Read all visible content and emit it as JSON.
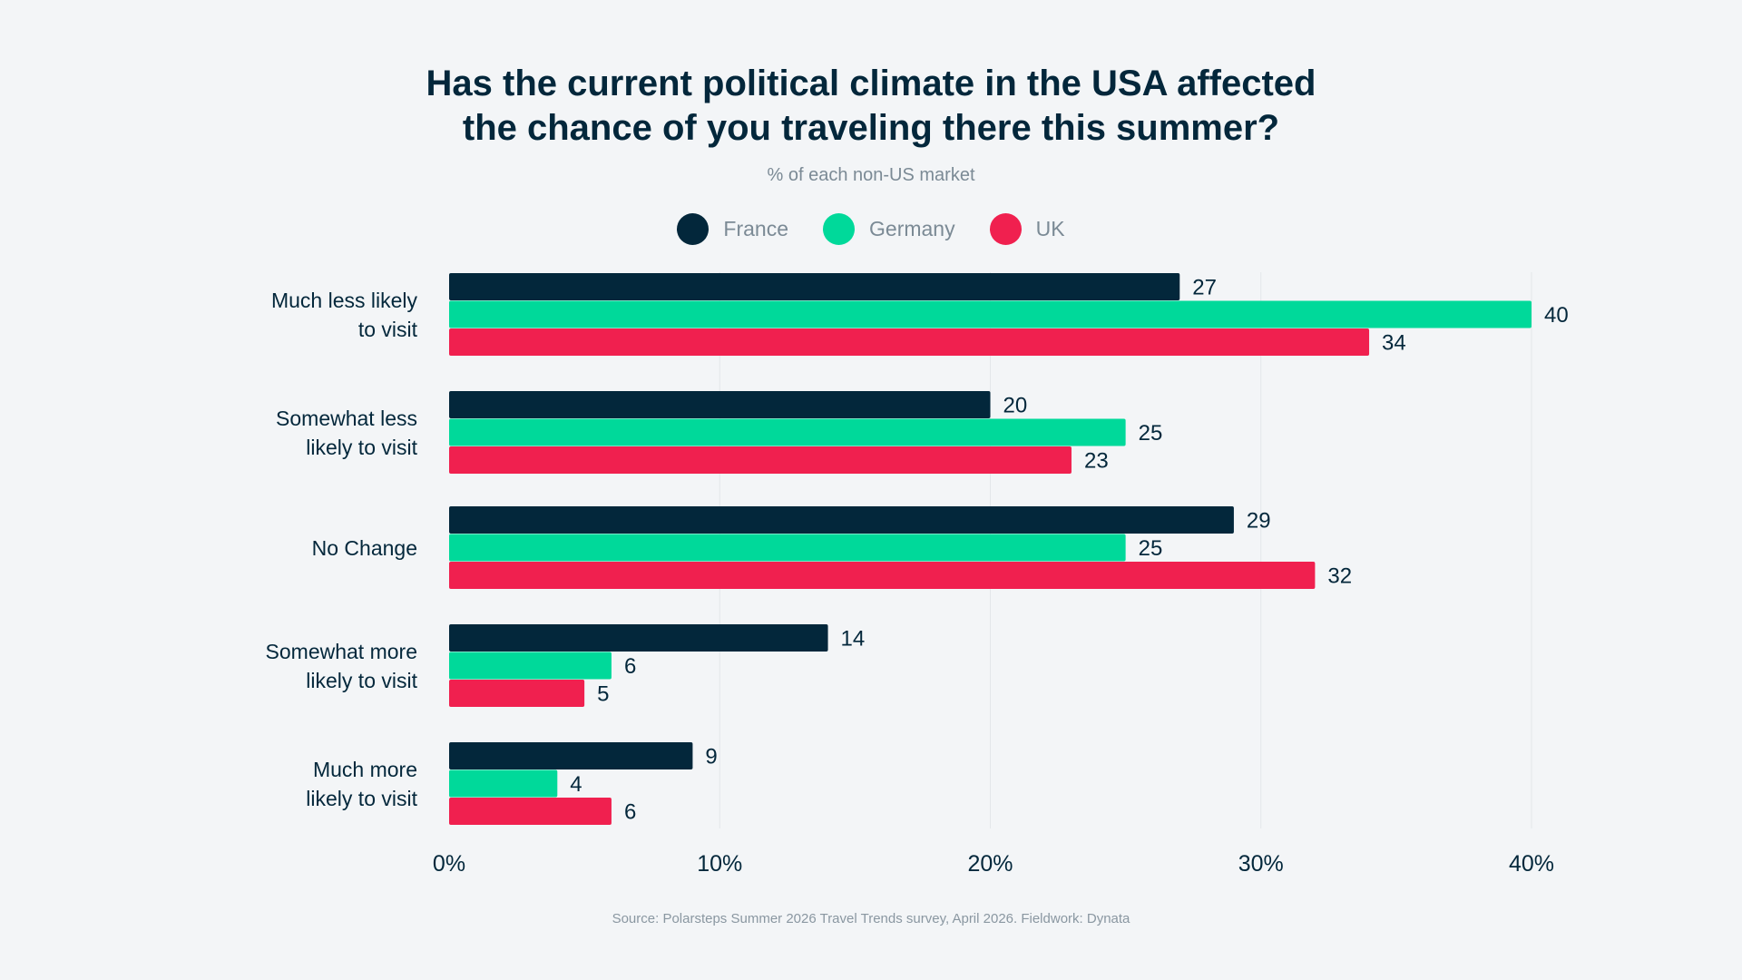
{
  "chart_data": {
    "type": "bar",
    "orientation": "horizontal",
    "title": [
      "Has the current political climate in the USA affected",
      "the chance of you traveling there this summer?"
    ],
    "subtitle": "% of each non-US market",
    "categories": [
      [
        "Much less likely",
        "to visit"
      ],
      [
        "Somewhat less",
        "likely to visit"
      ],
      [
        "No Change"
      ],
      [
        "Somewhat more",
        "likely to visit"
      ],
      [
        "Much more",
        "likely to visit"
      ]
    ],
    "series": [
      {
        "name": "France",
        "color": "#03273b",
        "values": [
          27,
          20,
          29,
          14,
          9
        ]
      },
      {
        "name": "Germany",
        "color": "#00d99a",
        "values": [
          40,
          25,
          25,
          6,
          4
        ]
      },
      {
        "name": "UK",
        "color": "#f0204f",
        "values": [
          34,
          23,
          32,
          5,
          6
        ]
      }
    ],
    "xlim": [
      0,
      40
    ],
    "x_ticks": [
      0,
      10,
      20,
      30,
      40
    ],
    "x_tick_labels": [
      "0%",
      "10%",
      "20%",
      "30%",
      "40%"
    ],
    "grid": true,
    "legend_position": "top-center",
    "source": "Source: Polarsteps Summer 2026 Travel Trends survey, April 2026. Fieldwork: Dynata"
  }
}
